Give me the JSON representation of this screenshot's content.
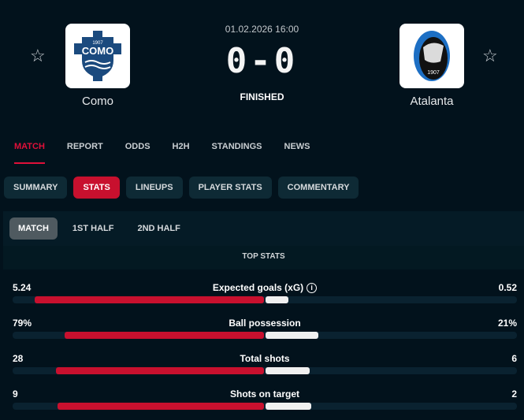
{
  "match": {
    "date": "01.02.2026 16:00",
    "score": "0-0",
    "status": "FINISHED",
    "home": {
      "name": "Como",
      "crest_text": "COMO",
      "crest_year": "1907"
    },
    "away": {
      "name": "Atalanta",
      "crest_text": "ATALANTA",
      "crest_year": "1907"
    }
  },
  "nav": {
    "tabs": [
      "MATCH",
      "REPORT",
      "ODDS",
      "H2H",
      "STANDINGS",
      "NEWS"
    ],
    "active": "MATCH"
  },
  "subtabs": {
    "items": [
      "SUMMARY",
      "STATS",
      "LINEUPS",
      "PLAYER STATS",
      "COMMENTARY"
    ],
    "active": "STATS"
  },
  "period": {
    "items": [
      "MATCH",
      "1ST HALF",
      "2ND HALF"
    ],
    "active": "MATCH"
  },
  "section_title": "TOP STATS",
  "colors": {
    "accent": "#c8102e",
    "away_bar": "#f0f0f0",
    "background": "#02121c"
  },
  "stats": [
    {
      "label": "Expected goals (xG)",
      "home": "5.24",
      "away": "0.52",
      "home_share": 0.91,
      "away_share": 0.09,
      "info": true
    },
    {
      "label": "Ball possession",
      "home": "79%",
      "away": "21%",
      "home_share": 0.79,
      "away_share": 0.21
    },
    {
      "label": "Total shots",
      "home": "28",
      "away": "6",
      "home_share": 0.824,
      "away_share": 0.176
    },
    {
      "label": "Shots on target",
      "home": "9",
      "away": "2",
      "home_share": 0.818,
      "away_share": 0.182
    }
  ]
}
